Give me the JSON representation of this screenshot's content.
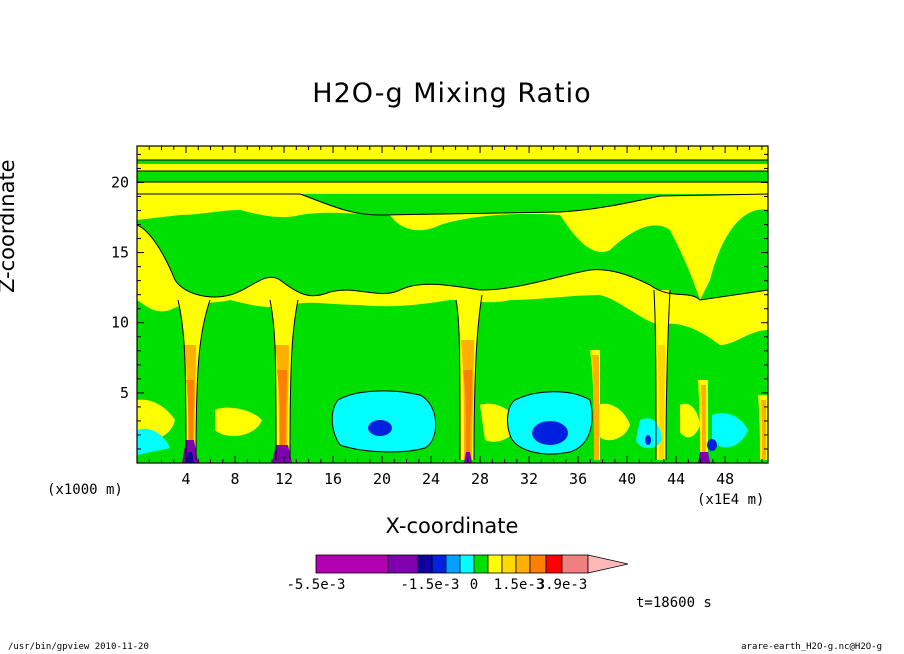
{
  "chart_data": {
    "type": "heatmap",
    "title": "H2O-g Mixing Ratio",
    "xlabel": "X-coordinate",
    "ylabel": "Z-coordinate",
    "x_unit_left": "(x1000 m)",
    "x_unit_right": "(x1E4 m)",
    "xlim": [
      0,
      51.5
    ],
    "ylim": [
      0,
      22.6
    ],
    "x_ticks": [
      4,
      8,
      12,
      16,
      20,
      24,
      28,
      32,
      36,
      40,
      44,
      48
    ],
    "y_ticks": [
      5,
      10,
      15,
      20
    ],
    "colorbar": {
      "colors": [
        "#b000b0",
        "#8000b0",
        "#1000a0",
        "#0020e0",
        "#00a0ff",
        "#00ffff",
        "#00e000",
        "#ffff00",
        "#ffd800",
        "#ffb000",
        "#ff8000",
        "#ff0000",
        "#f08080",
        "#ffb8b8"
      ],
      "labels": [
        "-5.5e-3",
        "-1.5e-3",
        "0",
        "1.5e-3",
        "3.9e-3"
      ]
    },
    "time_label": "t=18600 s"
  },
  "footer": {
    "left": "/usr/bin/gpview  2010-11-20",
    "right": "arare-earth_H2O-g.nc@H2O-g"
  }
}
